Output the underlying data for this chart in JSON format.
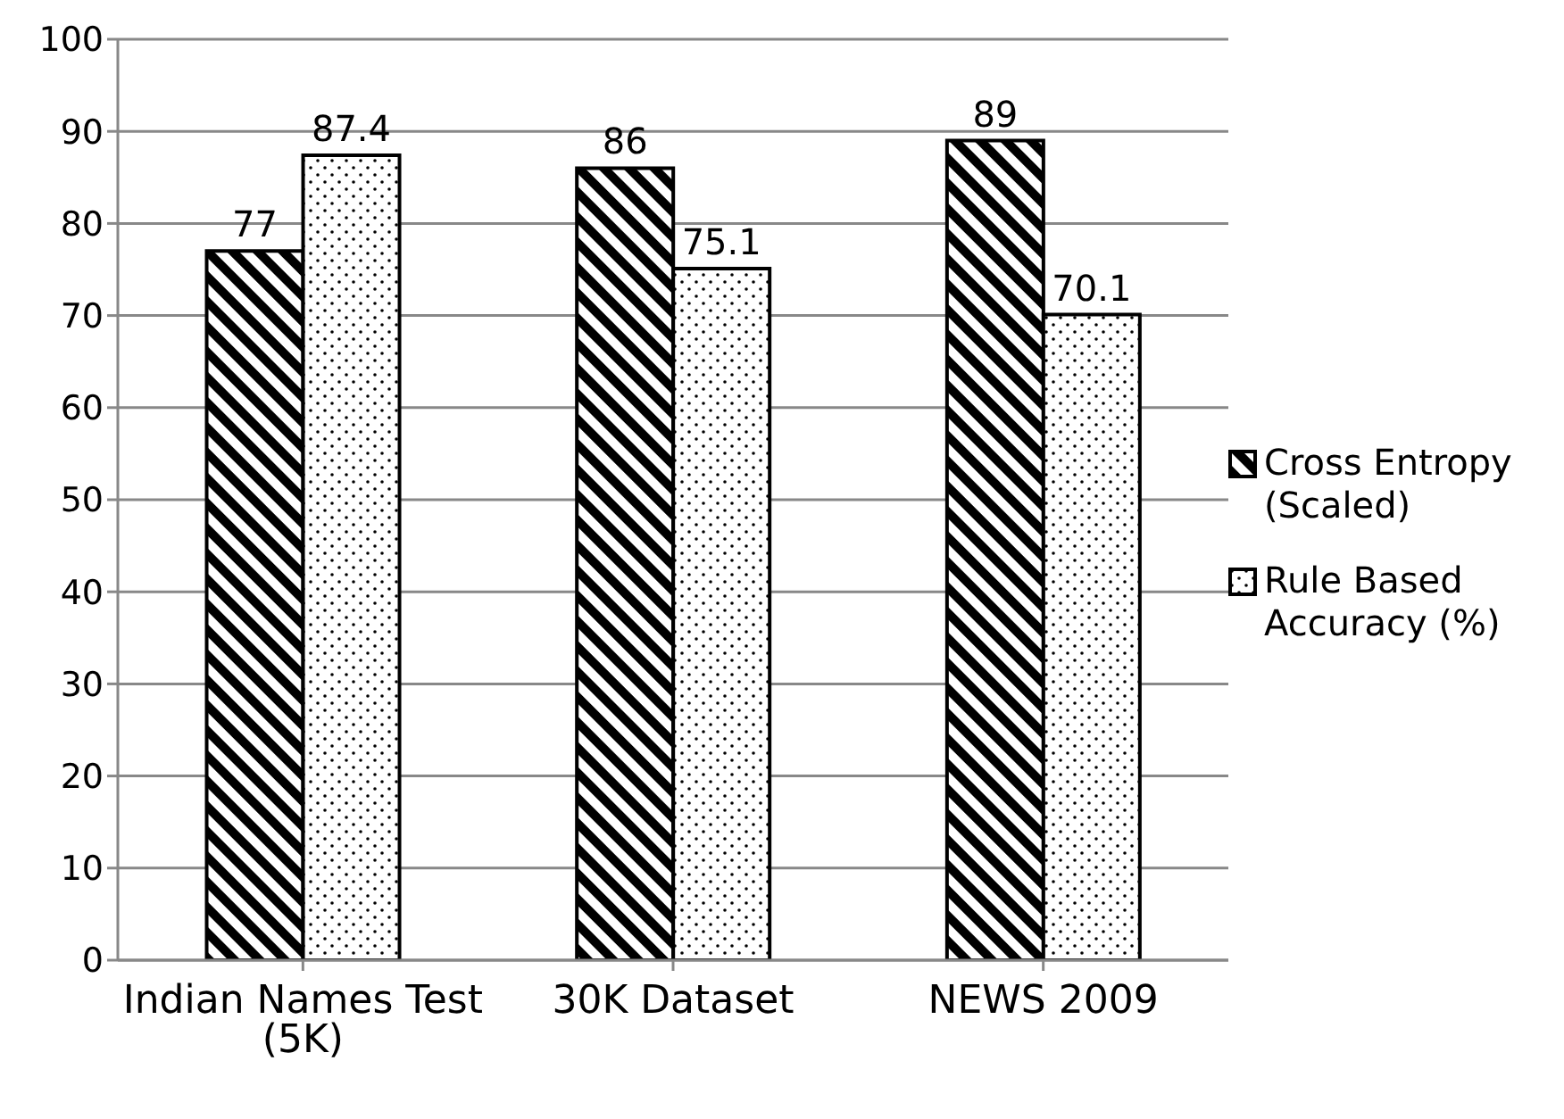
{
  "chart_data": {
    "type": "bar",
    "categories": [
      "Indian Names Test (5K)",
      "30K Dataset",
      "NEWS 2009"
    ],
    "series": [
      {
        "name": "Cross Entropy (Scaled)",
        "color": "#000000",
        "values": [
          77,
          86,
          89
        ]
      },
      {
        "name": "Rule Based Accuracy (%)",
        "color": "#000000",
        "values": [
          87.4,
          75.1,
          70.1
        ]
      }
    ],
    "ylim": [
      0,
      100
    ],
    "yticks": [
      0,
      10,
      20,
      30,
      40,
      50,
      60,
      70,
      80,
      90,
      100
    ],
    "grid": "y",
    "legend": "right",
    "data_labels": true
  }
}
